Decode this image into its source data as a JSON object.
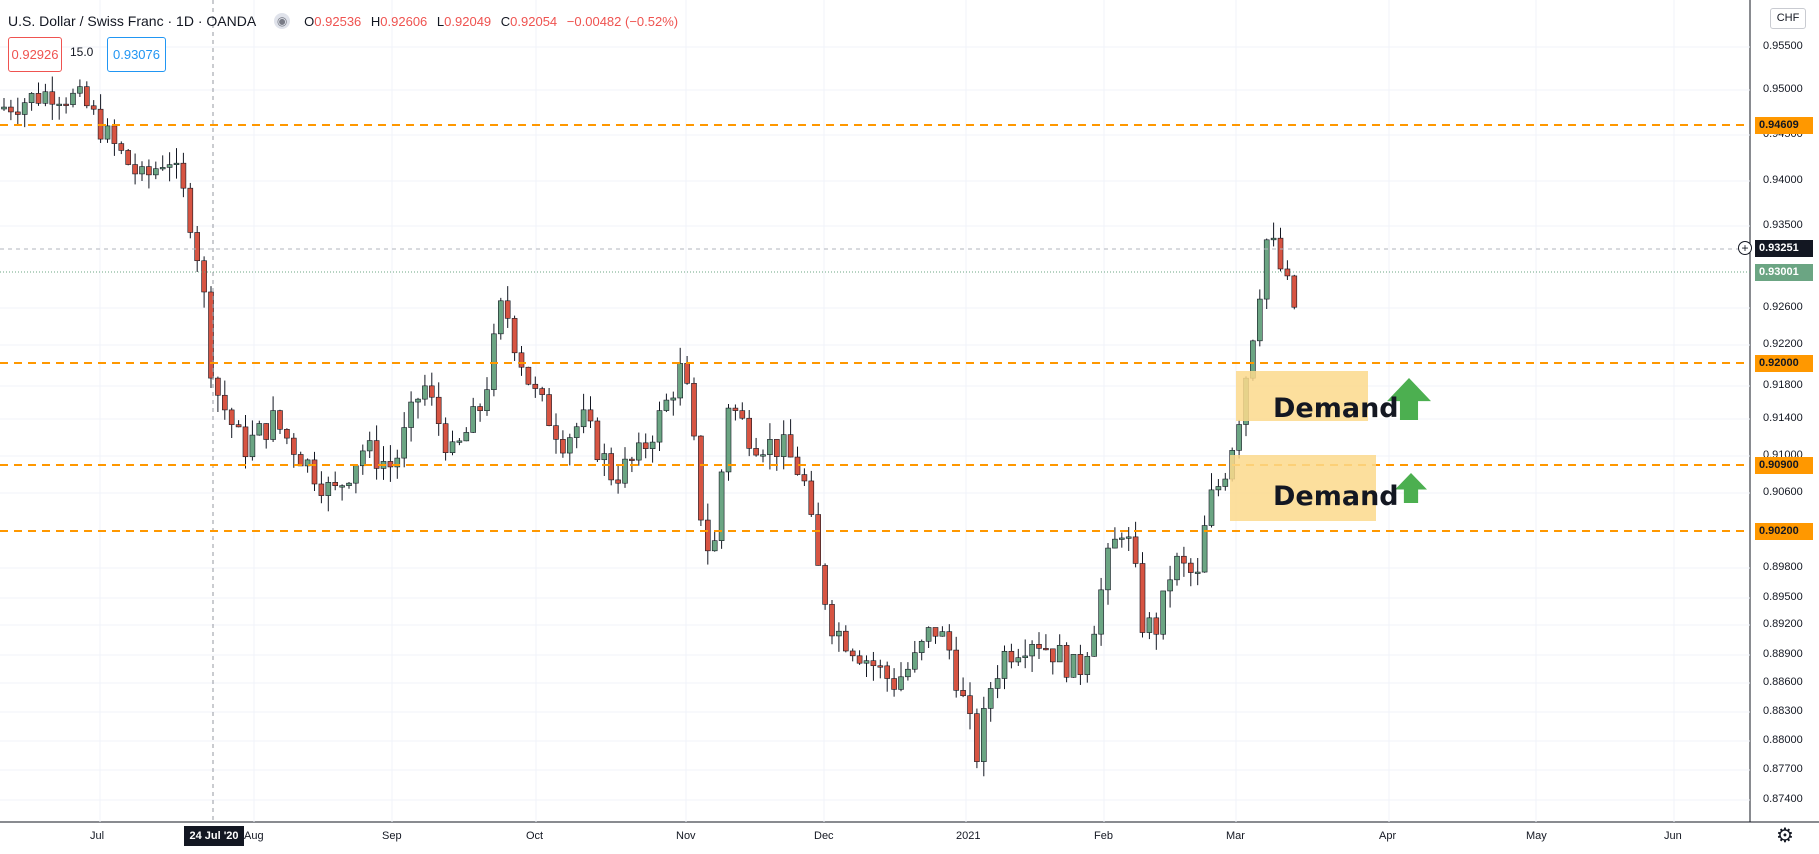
{
  "header": {
    "symbol_title": "U.S. Dollar / Swiss Franc · 1D · OANDA",
    "ohlc": [
      {
        "key": "O",
        "value": "0.92536"
      },
      {
        "key": "H",
        "value": "0.92606"
      },
      {
        "key": "L",
        "value": "0.92049"
      },
      {
        "key": "C",
        "value": "0.92054"
      }
    ],
    "change": "−0.00482 (−0.52%)"
  },
  "trade_panel": {
    "sell_price": "0.92926",
    "spread": "15.0",
    "buy_price": "0.93076"
  },
  "currency": "CHF",
  "colors": {
    "up": "#6ba583",
    "down": "#d75442",
    "level": "#ff9800",
    "zone": "#fbd98c",
    "arrow": "#4caf50",
    "grid": "#f0f3fa"
  },
  "price_axis": {
    "labels": [
      "0.95500",
      "0.95000",
      "0.94500",
      "0.94000",
      "0.93500",
      "0.92600",
      "0.92200",
      "0.91800",
      "0.91400",
      "0.91000",
      "0.90600",
      "0.89800",
      "0.89500",
      "0.89200",
      "0.88900",
      "0.88600",
      "0.88300",
      "0.88000",
      "0.87700",
      "0.87400"
    ]
  },
  "level_tags": [
    "0.94609",
    "0.92000",
    "0.90900",
    "0.90200"
  ],
  "crosshair_price": "0.93251",
  "last_price": "0.93001",
  "time_axis": {
    "labels": [
      "Jul",
      "Aug",
      "Sep",
      "Oct",
      "Nov",
      "Dec",
      "2021",
      "Feb",
      "Mar",
      "Apr",
      "May",
      "Jun"
    ],
    "crosshair_date": "24 Jul '20"
  },
  "annotations": {
    "zone_upper_label": "Demand",
    "zone_lower_label": "Demand",
    "arrow_icon": "arrow-up-icon"
  },
  "settings_icon": "gear-icon"
}
